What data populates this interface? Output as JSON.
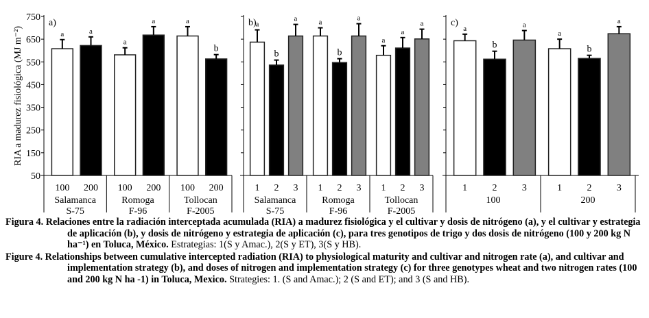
{
  "chart_data": [
    {
      "type": "bar",
      "panel_label": "a)",
      "ylabel": "RIA a madurez fisiológica (MJ m⁻²)",
      "ylim": [
        50,
        750
      ],
      "yticks": [
        50,
        150,
        250,
        350,
        450,
        550,
        650,
        750
      ],
      "groups": [
        {
          "name": [
            "Salamanca",
            "S-75"
          ],
          "categories": [
            "100",
            "200"
          ],
          "values": [
            608,
            622
          ],
          "err_top": [
            648,
            660
          ],
          "letters": [
            "a",
            "a"
          ],
          "fills": [
            "#ffffff",
            "#000000"
          ]
        },
        {
          "name": [
            "Romoga",
            "F-96"
          ],
          "categories": [
            "100",
            "200"
          ],
          "values": [
            581,
            668
          ],
          "err_top": [
            612,
            705
          ],
          "letters": [
            "a",
            "a"
          ],
          "fills": [
            "#ffffff",
            "#000000"
          ]
        },
        {
          "name": [
            "Tollocan",
            "F-2005"
          ],
          "categories": [
            "100",
            "200"
          ],
          "values": [
            664,
            563
          ],
          "err_top": [
            705,
            582
          ],
          "letters": [
            "a",
            "b"
          ],
          "fills": [
            "#ffffff",
            "#000000"
          ]
        }
      ]
    },
    {
      "type": "bar",
      "panel_label": "b)",
      "ylim": [
        50,
        750
      ],
      "groups": [
        {
          "name": [
            "Salamanca",
            "S-75"
          ],
          "categories": [
            "1",
            "2",
            "3"
          ],
          "values": [
            637,
            536,
            664
          ],
          "err_top": [
            691,
            558,
            715
          ],
          "letters": [
            "a",
            "b",
            "a"
          ],
          "fills": [
            "#ffffff",
            "#000000",
            "#808080"
          ]
        },
        {
          "name": [
            "Romoga",
            "F-96"
          ],
          "categories": [
            "1",
            "2",
            "3"
          ],
          "values": [
            664,
            547,
            664
          ],
          "err_top": [
            700,
            564,
            718
          ],
          "letters": [
            "a",
            "b",
            "a"
          ],
          "fills": [
            "#ffffff",
            "#000000",
            "#808080"
          ]
        },
        {
          "name": [
            "Tollocan",
            "F-2005"
          ],
          "categories": [
            "1",
            "2",
            "3"
          ],
          "values": [
            579,
            611,
            651
          ],
          "err_top": [
            621,
            657,
            694
          ],
          "letters": [
            "a",
            "a",
            "a"
          ],
          "fills": [
            "#ffffff",
            "#000000",
            "#808080"
          ]
        }
      ]
    },
    {
      "type": "bar",
      "panel_label": "c)",
      "ylim": [
        50,
        750
      ],
      "groups": [
        {
          "name": [
            "100"
          ],
          "categories": [
            "1",
            "2",
            "3"
          ],
          "values": [
            643,
            562,
            646
          ],
          "err_top": [
            672,
            597,
            688
          ],
          "letters": [
            "a",
            "b",
            "a"
          ],
          "fills": [
            "#ffffff",
            "#000000",
            "#808080"
          ]
        },
        {
          "name": [
            "200"
          ],
          "categories": [
            "1",
            "2",
            "3"
          ],
          "values": [
            608,
            565,
            674
          ],
          "err_top": [
            650,
            579,
            705
          ],
          "letters": [
            "a",
            "b",
            "a"
          ],
          "fills": [
            "#ffffff",
            "#000000",
            "#808080"
          ]
        }
      ]
    }
  ],
  "caption": {
    "es_bold": "Figura 4. Relaciones entre la radiación interceptada acumulada (RIA) a madurez fisiológica y el cultivar y dosis de nitrógeno (a), y el cultivar y estrategia de aplicación (b), y dosis de nitrógeno y estrategia de aplicación (c), para tres genotipos de trigo y dos dosis de nitrógeno (100 y 200 kg N ha⁻¹) en Toluca, México.",
    "es_rest": " Estrategias: 1(S y Amac.), 2(S y ET), 3(S y HB).",
    "en_bold": "Figure 4. Relationships between cumulative intercepted radiation (RIA) to physiological maturity and cultivar and nitrogen rate (a), and cultivar and implementation strategy (b), and doses of nitrogen and implementation strategy (c) for three genotypes wheat and two nitrogen rates (100 and 200 kg N ha -1) in Toluca, Mexico.",
    "en_rest": " Strategies: 1. (S and Amac.); 2 (S and ET); and 3 (S and HB)."
  }
}
